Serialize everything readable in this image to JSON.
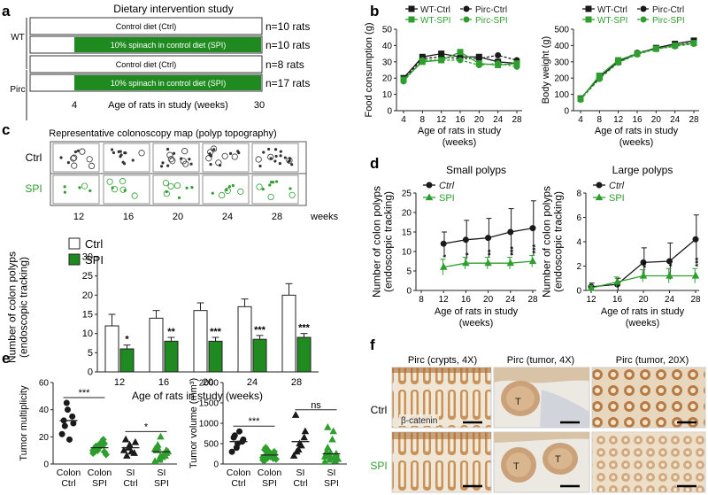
{
  "panel_labels": [
    "a",
    "b",
    "c",
    "d",
    "e",
    "f"
  ],
  "colors": {
    "ctrl": "#1a1a1a",
    "spi": "#2e9e2e",
    "spi_fill": "#1f8a1f",
    "pirc": "#555555"
  },
  "panel_a": {
    "title": "Dietary intervention study",
    "groups": [
      {
        "strain": "WT",
        "rows": [
          {
            "diet": "Control diet (Ctrl)",
            "n": "n=10 rats",
            "spi": false
          },
          {
            "diet": "10% spinach in control diet (SPI)",
            "n": "n=10 rats",
            "spi": true
          }
        ]
      },
      {
        "strain": "Pirc",
        "rows": [
          {
            "diet": "Control diet (Ctrl)",
            "n": "n=8 rats",
            "spi": false
          },
          {
            "diet": "10% spinach in control diet (SPI)",
            "n": "n=17 rats",
            "spi": true
          }
        ]
      }
    ],
    "start_label": "4",
    "end_label": "30",
    "axis_label": "Age of rats in study (weeks)"
  },
  "chart_data": [
    {
      "id": "b_food",
      "type": "line",
      "x": [
        4,
        8,
        12,
        16,
        20,
        24,
        28
      ],
      "series": [
        {
          "name": "WT-Ctrl",
          "values": [
            20,
            33,
            35,
            33,
            33,
            30,
            29
          ]
        },
        {
          "name": "Pirc-Ctrl",
          "values": [
            19,
            32,
            33,
            32,
            32,
            34,
            31
          ]
        },
        {
          "name": "WT-SPI",
          "values": [
            19,
            30,
            31,
            36,
            29,
            28,
            29
          ]
        },
        {
          "name": "Pirc-SPI",
          "values": [
            18,
            31,
            31,
            31,
            28,
            29,
            27
          ]
        }
      ],
      "ylim": [
        0,
        50
      ],
      "yticks": [
        0,
        10,
        20,
        30,
        40,
        50
      ],
      "ylabel": "Food consumption (g)",
      "xlabel": [
        "Age of rats in study",
        "(weeks)"
      ],
      "legend": [
        "WT-Ctrl",
        "Pirc-Ctrl",
        "WT-SPI",
        "Pirc-SPI"
      ]
    },
    {
      "id": "b_weight",
      "type": "line",
      "x": [
        4,
        8,
        12,
        16,
        20,
        24,
        28
      ],
      "series": [
        {
          "name": "WT-Ctrl",
          "values": [
            75,
            205,
            300,
            350,
            385,
            410,
            430
          ]
        },
        {
          "name": "Pirc-Ctrl",
          "values": [
            70,
            200,
            305,
            355,
            380,
            400,
            420
          ]
        },
        {
          "name": "WT-SPI",
          "values": [
            72,
            215,
            310,
            350,
            380,
            400,
            415
          ]
        },
        {
          "name": "Pirc-SPI",
          "values": [
            68,
            195,
            295,
            345,
            378,
            395,
            410
          ]
        }
      ],
      "ylim": [
        0,
        500
      ],
      "yticks": [
        0,
        100,
        200,
        300,
        400,
        500
      ],
      "ylabel": "Body weight (g)",
      "xlabel": [
        "Age of rats in study",
        "(weeks)"
      ],
      "legend": [
        "WT-Ctrl",
        "Pirc-Ctrl",
        "WT-SPI",
        "Pirc-SPI"
      ]
    },
    {
      "id": "c_bar",
      "type": "bar",
      "categories": [
        "12",
        "16",
        "20",
        "24",
        "28"
      ],
      "series": [
        {
          "name": "Ctrl",
          "values": [
            12,
            14,
            16,
            17,
            20
          ],
          "err": [
            3,
            2,
            2,
            2,
            3
          ]
        },
        {
          "name": "SPI",
          "values": [
            6,
            8,
            8,
            8.5,
            9
          ],
          "err": [
            1,
            1,
            1,
            1,
            1
          ]
        }
      ],
      "significance": [
        "*",
        "**",
        "***",
        "***",
        "***"
      ],
      "ylim": [
        0,
        30
      ],
      "yticks": [
        0,
        5,
        10,
        15,
        20,
        25,
        30
      ],
      "ylabel": [
        "Number of colon polyps",
        "(endoscopic tracking)"
      ],
      "xlabel": "Age of rats in study (weeks)",
      "legend": [
        "Ctrl",
        "SPI"
      ]
    },
    {
      "id": "d_small",
      "type": "line",
      "title": "Small polyps",
      "x": [
        12,
        16,
        20,
        24,
        28
      ],
      "series": [
        {
          "name": "Ctrl",
          "values": [
            12,
            13,
            13.5,
            15,
            16
          ],
          "err": [
            3,
            5,
            5,
            6,
            7
          ]
        },
        {
          "name": "SPI",
          "values": [
            6,
            7,
            7,
            7,
            7.5
          ],
          "err": [
            2,
            1.5,
            1.5,
            1.5,
            1.5
          ]
        }
      ],
      "significance": [
        "*",
        "*",
        "**",
        "***",
        "***"
      ],
      "xlim": [
        8,
        28
      ],
      "xticks": [
        8,
        12,
        16,
        20,
        24,
        28
      ],
      "ylim": [
        0,
        25
      ],
      "yticks": [
        0,
        5,
        10,
        15,
        20,
        25
      ],
      "ylabel": [
        "Number of colon polyps",
        "(endoscopic tracking)"
      ],
      "xlabel": [
        "Age of rats in study",
        "(weeks)"
      ],
      "legend": [
        "Ctrl",
        "SPI"
      ]
    },
    {
      "id": "d_large",
      "type": "line",
      "title": "Large polyps",
      "x": [
        12,
        16,
        20,
        24,
        28
      ],
      "series": [
        {
          "name": "Ctrl",
          "values": [
            0.3,
            0.5,
            2.3,
            2.4,
            4.2
          ],
          "err": [
            0.3,
            0.5,
            1.2,
            1.5,
            2
          ]
        },
        {
          "name": "SPI",
          "values": [
            0.2,
            0.7,
            1.2,
            1.2,
            1.2
          ],
          "err": [
            0.2,
            0.4,
            0.5,
            0.6,
            0.6
          ]
        }
      ],
      "significance": [
        "",
        "",
        "**",
        "*",
        "***"
      ],
      "xlim": [
        12,
        28
      ],
      "xticks": [
        12,
        16,
        20,
        24,
        28
      ],
      "ylim": [
        0,
        8
      ],
      "yticks": [
        0,
        2,
        4,
        6,
        8
      ],
      "ylabel": [
        "Number of colon polyps",
        "(endoscopic tracking)"
      ],
      "xlabel": [
        "Age of rats in study",
        "(weeks)"
      ],
      "legend": [
        "Ctrl",
        "SPI"
      ]
    },
    {
      "id": "e_mult",
      "type": "scatter",
      "groups": [
        "Colon Ctrl",
        "Colon SPI",
        "SI Ctrl",
        "SI SPI"
      ],
      "group_labels": [
        [
          "Colon",
          "Ctrl"
        ],
        [
          "Colon",
          "SPI"
        ],
        [
          "SI",
          "Ctrl"
        ],
        [
          "SI",
          "SPI"
        ]
      ],
      "points": [
        [
          22,
          45,
          40,
          35,
          30,
          32,
          28,
          18
        ],
        [
          8,
          10,
          12,
          14,
          15,
          9,
          11,
          13,
          16,
          7,
          10,
          12,
          14,
          18,
          9,
          11,
          13
        ],
        [
          10,
          12,
          14,
          8,
          16,
          18,
          6,
          9
        ],
        [
          2,
          4,
          6,
          8,
          10,
          12,
          14,
          5,
          7,
          9,
          11,
          3,
          20,
          6,
          8,
          10,
          12
        ]
      ],
      "means": [
        32,
        12,
        12,
        9
      ],
      "significance": [
        {
          "pair": [
            0,
            1
          ],
          "label": "***"
        },
        {
          "pair": [
            2,
            3
          ],
          "label": "*"
        }
      ],
      "ylim": [
        0,
        60
      ],
      "yticks": [
        0,
        20,
        40,
        60
      ],
      "ylabel": "Tumor multiplicity"
    },
    {
      "id": "e_vol",
      "type": "scatter",
      "groups": [
        "Colon Ctrl",
        "Colon SPI",
        "SI Ctrl",
        "SI SPI"
      ],
      "group_labels": [
        [
          "Colon",
          "Ctrl"
        ],
        [
          "Colon",
          "SPI"
        ],
        [
          "SI",
          "Ctrl"
        ],
        [
          "SI",
          "SPI"
        ]
      ],
      "points": [
        [
          300,
          400,
          500,
          550,
          600,
          650,
          700,
          800
        ],
        [
          100,
          150,
          200,
          250,
          300,
          350,
          400,
          180,
          220,
          120,
          160,
          260,
          310,
          140,
          240,
          90,
          200
        ],
        [
          200,
          350,
          500,
          650,
          800,
          1200,
          300,
          450
        ],
        [
          50,
          100,
          150,
          200,
          250,
          300,
          400,
          600,
          800,
          120,
          180,
          220,
          280,
          80,
          160,
          260,
          900
        ]
      ],
      "means": [
        550,
        220,
        550,
        250
      ],
      "significance": [
        {
          "pair": [
            0,
            1
          ],
          "label": "***"
        },
        {
          "pair": [
            2,
            3
          ],
          "label": "ns"
        }
      ],
      "ylim": [
        0,
        2000
      ],
      "yticks": [
        0,
        500,
        1000,
        1500,
        2000
      ],
      "ylabel": "Tumor volume (mm³)"
    }
  ],
  "panel_c": {
    "map_title": "Representative colonoscopy map (polyp topography)",
    "row_labels": [
      "Ctrl",
      "SPI"
    ],
    "week_labels": [
      "12",
      "16",
      "20",
      "24",
      "28"
    ],
    "weeks_word": "weeks"
  },
  "panel_f": {
    "titles": [
      "Pirc (crypts, 4X)",
      "Pirc (tumor, 4X)",
      "Pirc (tumor, 20X)"
    ],
    "row_labels": [
      "Ctrl",
      "SPI"
    ],
    "stain_label": "β-catenin",
    "tumor_mark": "T"
  }
}
